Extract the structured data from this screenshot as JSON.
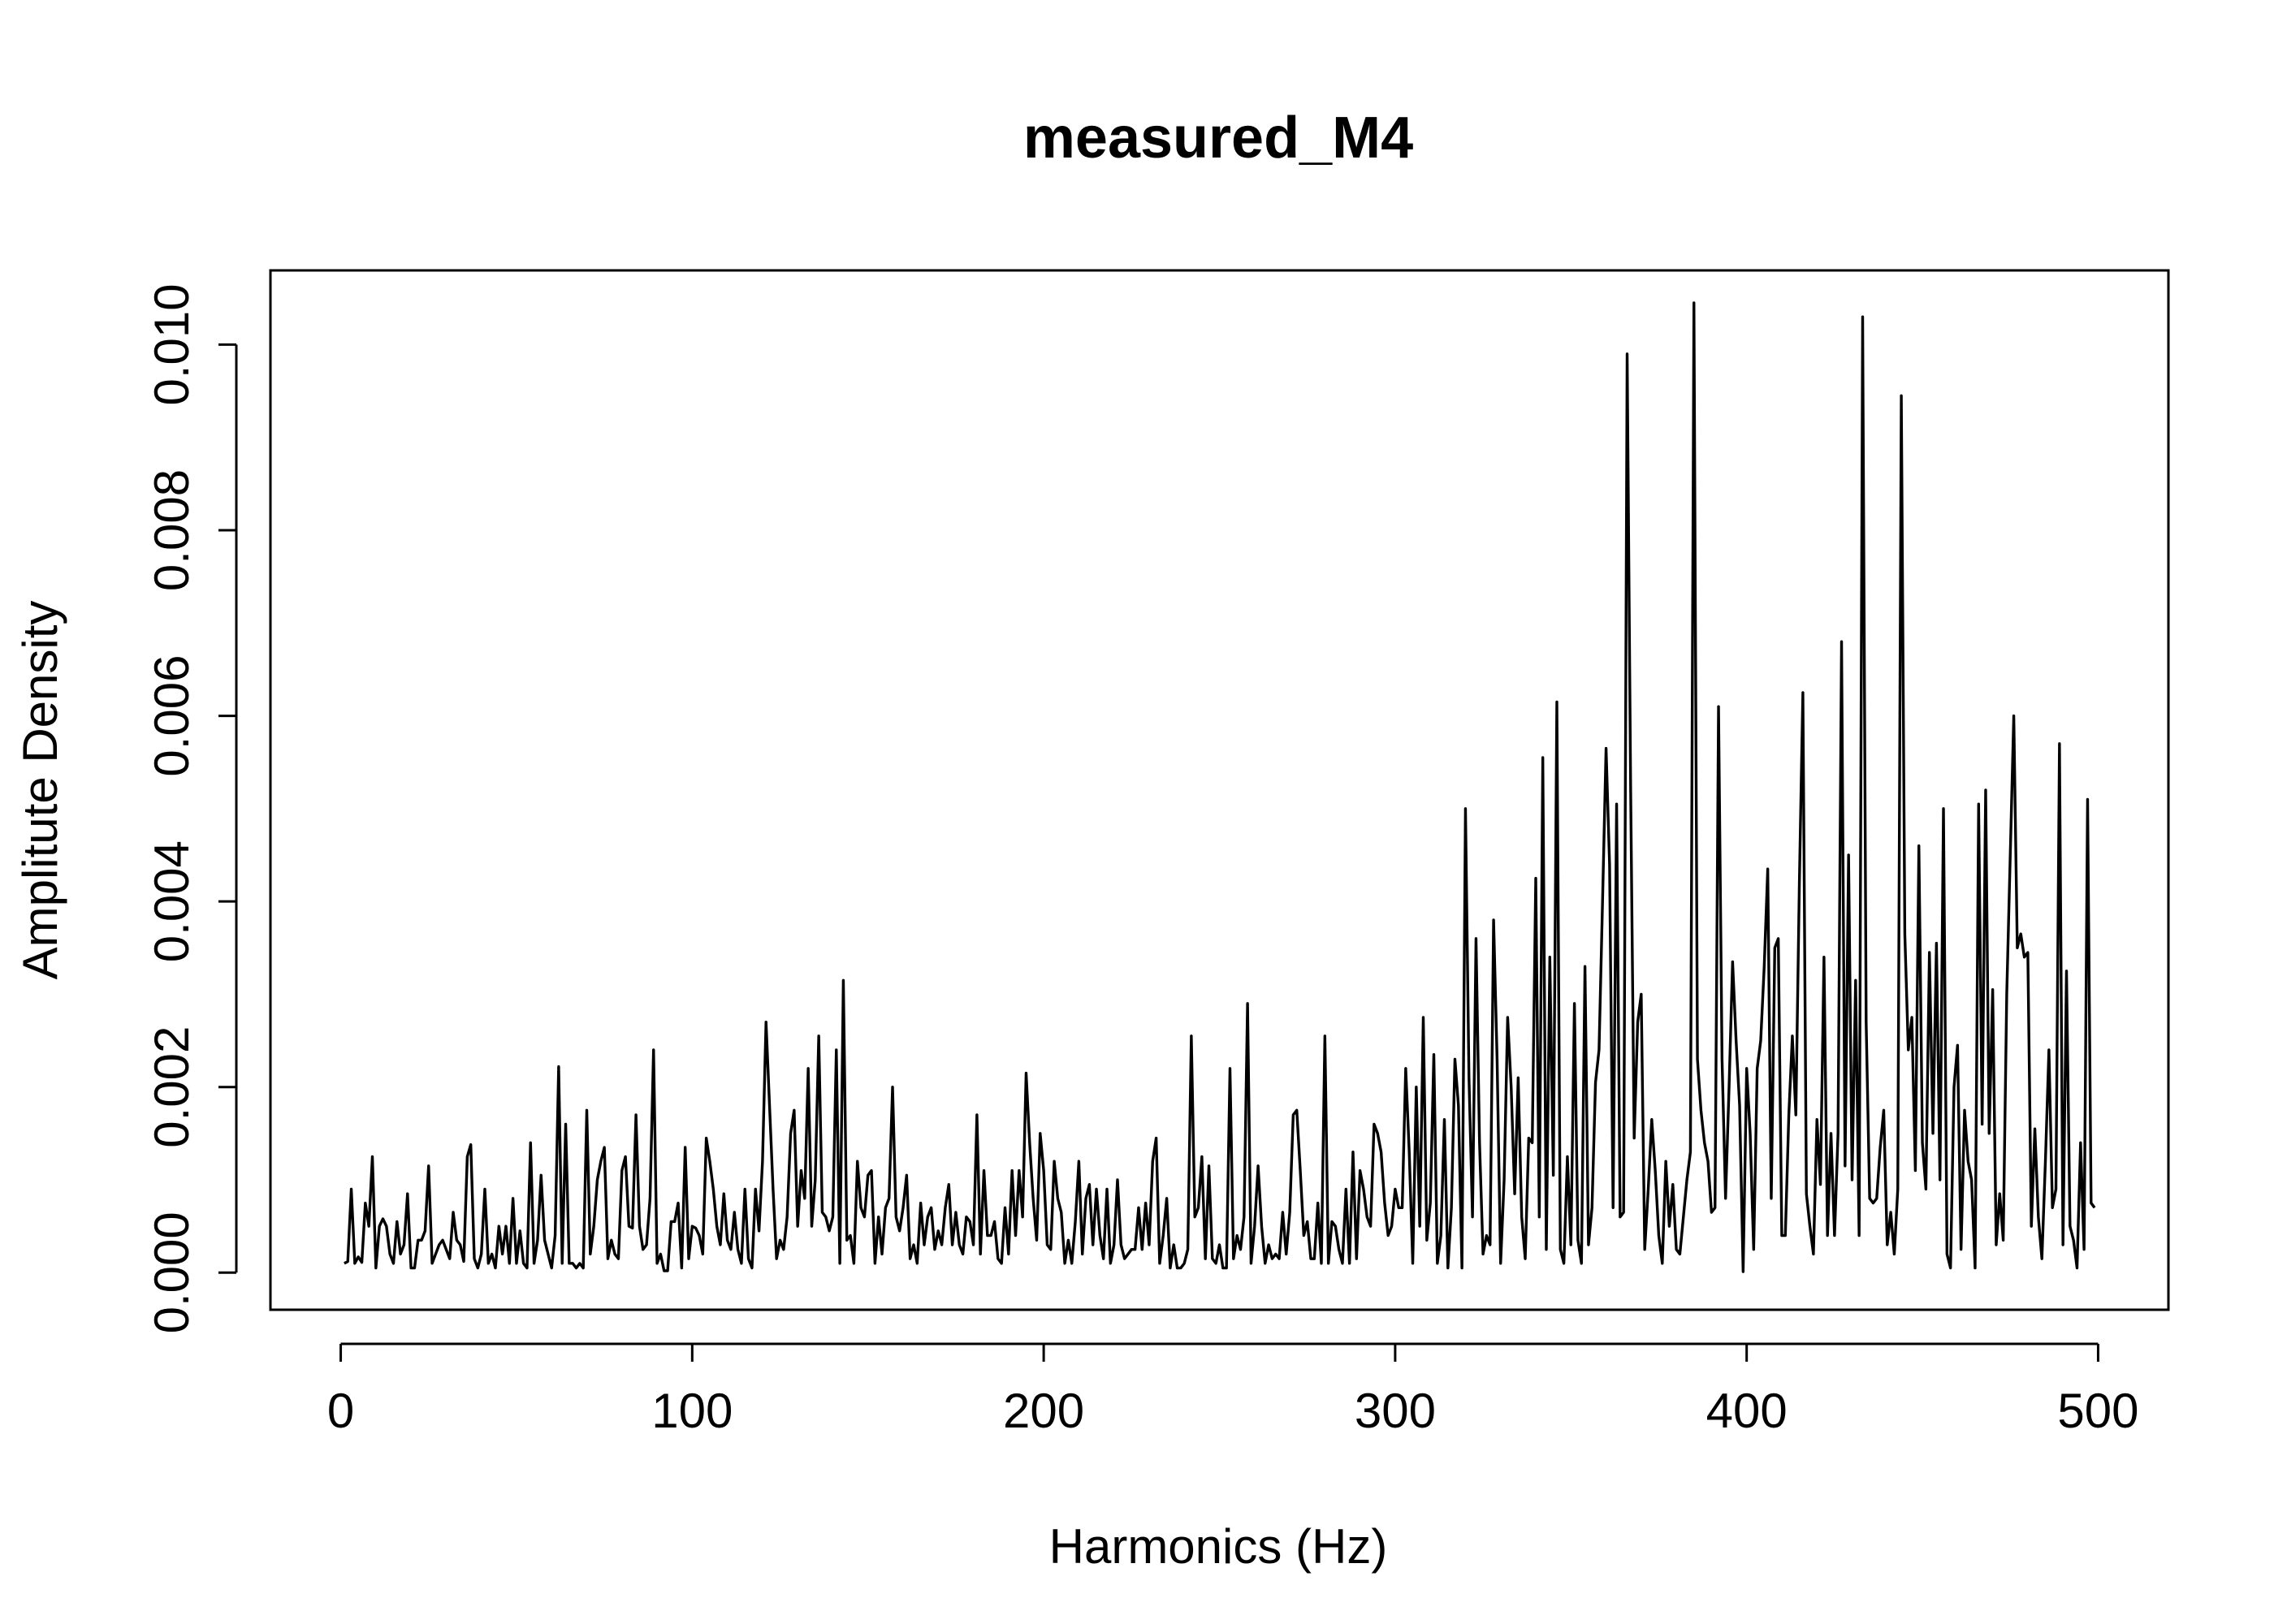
{
  "chart_data": {
    "type": "line",
    "title": "measured_M4",
    "xlabel": "Harmonics (Hz)",
    "ylabel": "Amplitute Density",
    "xlim": [
      -20,
      520
    ],
    "ylim": [
      -0.0004,
      0.0108
    ],
    "xticks": [
      0,
      100,
      200,
      300,
      400,
      500
    ],
    "xtick_labels": [
      "0",
      "100",
      "200",
      "300",
      "400",
      "500"
    ],
    "yticks": [
      0.0,
      0.002,
      0.004,
      0.006,
      0.008,
      0.01
    ],
    "ytick_labels": [
      "0.000",
      "0.002",
      "0.004",
      "0.006",
      "0.008",
      "0.010"
    ],
    "grid": false,
    "legend": "none",
    "line_color": "#000000",
    "series": [
      {
        "x_start": 1,
        "x_step": 1,
        "values": [
          0.0001,
          0.00012,
          0.0009,
          0.0001,
          0.00017,
          0.00011,
          0.00075,
          0.0005,
          0.00125,
          5e-05,
          0.0005,
          0.00058,
          0.0005,
          0.0002,
          0.0001,
          0.00055,
          0.0002,
          0.0003,
          0.00085,
          5e-05,
          5e-05,
          0.00035,
          0.00035,
          0.00045,
          0.00115,
          0.0001,
          0.0002,
          0.0003,
          0.00035,
          0.00025,
          0.00015,
          0.00065,
          0.00035,
          0.0003,
          0.00012,
          0.00125,
          0.00138,
          0.00015,
          5e-05,
          0.0002,
          0.0009,
          0.0001,
          0.0002,
          5e-05,
          0.0005,
          0.0002,
          0.0005,
          0.0001,
          0.0008,
          0.0001,
          0.00045,
          0.0001,
          5e-05,
          0.0014,
          0.0001,
          0.00035,
          0.00105,
          0.00035,
          0.0002,
          5e-05,
          0.0004,
          0.00222,
          0.0001,
          0.0016,
          0.0001,
          0.0001,
          5e-05,
          0.0001,
          5e-05,
          0.00175,
          0.0002,
          0.0005,
          0.001,
          0.0012,
          0.00135,
          0.00015,
          0.00035,
          0.0002,
          0.00015,
          0.0011,
          0.00125,
          0.0005,
          0.00048,
          0.0017,
          0.0005,
          0.00025,
          0.0003,
          0.0008,
          0.0024,
          0.0001,
          0.0002,
          2e-05,
          2e-05,
          0.00055,
          0.00055,
          0.00075,
          5e-05,
          0.00135,
          0.00015,
          0.0005,
          0.00048,
          0.0004,
          0.0002,
          0.00145,
          0.0012,
          0.0009,
          0.0005,
          0.0003,
          0.00085,
          0.00035,
          0.00025,
          0.00065,
          0.00025,
          0.0001,
          0.0009,
          0.00015,
          5e-05,
          0.0009,
          0.00045,
          0.0012,
          0.0027,
          0.0018,
          0.0009,
          0.00015,
          0.00035,
          0.00025,
          0.0006,
          0.0015,
          0.00175,
          0.0005,
          0.0011,
          0.0008,
          0.0022,
          0.0005,
          0.001,
          0.00255,
          0.00065,
          0.0006,
          0.00045,
          0.0006,
          0.0024,
          0.0001,
          0.00315,
          0.00035,
          0.0004,
          0.0001,
          0.0012,
          0.0007,
          0.0006,
          0.00105,
          0.0011,
          0.0001,
          0.0006,
          0.0002,
          0.0007,
          0.0008,
          0.002,
          0.0006,
          0.00045,
          0.0007,
          0.00105,
          0.00015,
          0.0003,
          0.0001,
          0.00075,
          0.0003,
          0.0006,
          0.0007,
          0.00025,
          0.00045,
          0.0003,
          0.0007,
          0.00095,
          0.0003,
          0.00065,
          0.0003,
          0.0002,
          0.0006,
          0.00055,
          0.0003,
          0.0017,
          0.0002,
          0.0011,
          0.0004,
          0.0004,
          0.00055,
          0.00015,
          0.0001,
          0.0007,
          0.0002,
          0.0011,
          0.0004,
          0.0011,
          0.0006,
          0.00215,
          0.0014,
          0.0008,
          0.00035,
          0.0015,
          0.0011,
          0.0003,
          0.00025,
          0.0012,
          0.0008,
          0.00065,
          0.0001,
          0.00035,
          0.0001,
          0.00055,
          0.0012,
          0.0002,
          0.0008,
          0.00095,
          0.0003,
          0.0009,
          0.0004,
          0.00015,
          0.0009,
          0.0001,
          0.0003,
          0.001,
          0.0003,
          0.00015,
          0.0002,
          0.00025,
          0.00025,
          0.0007,
          0.00025,
          0.00075,
          0.0003,
          0.0012,
          0.00145,
          0.0001,
          0.0004,
          0.0008,
          5e-05,
          0.0003,
          5e-05,
          5e-05,
          0.0001,
          0.00025,
          0.00255,
          0.0006,
          0.0007,
          0.00125,
          0.00015,
          0.00115,
          0.00015,
          0.0001,
          0.0003,
          5e-05,
          5e-05,
          0.0022,
          0.00015,
          0.0004,
          0.00025,
          0.0006,
          0.0029,
          0.0001,
          0.0005,
          0.00115,
          0.0005,
          0.0001,
          0.0003,
          0.00015,
          0.0002,
          0.00015,
          0.00065,
          0.0002,
          0.00065,
          0.0017,
          0.00175,
          0.0011,
          0.0004,
          0.00055,
          0.00015,
          0.00015,
          0.00075,
          0.0001,
          0.00255,
          0.0001,
          0.00055,
          0.0005,
          0.00025,
          0.0001,
          0.0009,
          0.0001,
          0.0013,
          0.00015,
          0.0011,
          0.0009,
          0.0006,
          0.0005,
          0.0016,
          0.0015,
          0.0013,
          0.00075,
          0.0004,
          0.0005,
          0.0009,
          0.0007,
          0.0007,
          0.0022,
          0.0013,
          0.0001,
          0.002,
          0.0005,
          0.00275,
          0.00035,
          0.00075,
          0.00235,
          0.0001,
          0.0004,
          0.00165,
          5e-05,
          0.0007,
          0.0023,
          0.0018,
          5e-05,
          0.005,
          0.0021,
          0.0006,
          0.0036,
          0.0014,
          0.0002,
          0.0004,
          0.0003,
          0.0038,
          0.0023,
          0.0001,
          0.001,
          0.00275,
          0.002,
          0.00085,
          0.0021,
          0.0006,
          0.00015,
          0.00145,
          0.0014,
          0.00425,
          0.0006,
          0.00555,
          0.00025,
          0.0034,
          0.00105,
          0.00615,
          0.00025,
          0.0001,
          0.00125,
          0.0003,
          0.0029,
          0.00035,
          0.0001,
          0.0033,
          0.0003,
          0.0007,
          0.00205,
          0.0024,
          0.004,
          0.00565,
          0.0044,
          0.0007,
          0.00505,
          0.0006,
          0.00065,
          0.0099,
          0.0052,
          0.00145,
          0.0027,
          0.003,
          0.00025,
          0.0009,
          0.00165,
          0.0011,
          0.0004,
          0.0001,
          0.0012,
          0.0005,
          0.00095,
          0.00025,
          0.0002,
          0.0006,
          0.001,
          0.0013,
          0.01045,
          0.0023,
          0.00175,
          0.0014,
          0.0012,
          0.00065,
          0.0007,
          0.0061,
          0.0023,
          0.0008,
          0.002,
          0.00335,
          0.0025,
          0.0018,
          1e-05,
          0.0022,
          0.0015,
          0.00025,
          0.0022,
          0.0025,
          0.0033,
          0.00435,
          0.0008,
          0.0035,
          0.0036,
          0.0004,
          0.0004,
          0.0017,
          0.00255,
          0.0017,
          0.0042,
          0.00625,
          0.00085,
          0.0005,
          0.0002,
          0.00165,
          0.00095,
          0.0034,
          0.0004,
          0.0015,
          0.0004,
          0.0015,
          0.0068,
          0.00115,
          0.0045,
          0.001,
          0.00315,
          0.0004,
          0.0103,
          0.0027,
          0.0008,
          0.00075,
          0.0008,
          0.00135,
          0.00175,
          0.0003,
          0.00065,
          0.0002,
          0.0009,
          0.00945,
          0.00365,
          0.0024,
          0.00275,
          0.0011,
          0.0046,
          0.0014,
          0.0009,
          0.00345,
          0.0015,
          0.00355,
          0.001,
          0.005,
          0.0002,
          5e-05,
          0.002,
          0.00245,
          0.00025,
          0.00175,
          0.0012,
          0.001,
          5e-05,
          0.00505,
          0.0016,
          0.0052,
          0.0015,
          0.00305,
          0.0003,
          0.00085,
          0.00035,
          0.003,
          0.0045,
          0.006,
          0.0035,
          0.00365,
          0.0034,
          0.00345,
          0.0005,
          0.00155,
          0.0006,
          0.00015,
          0.0012,
          0.0024,
          0.0007,
          0.0009,
          0.0057,
          0.0003,
          0.00325,
          0.0005,
          0.00035,
          5e-05,
          0.0014,
          0.00025,
          0.0051,
          0.00075,
          0.0007
        ]
      }
    ]
  }
}
